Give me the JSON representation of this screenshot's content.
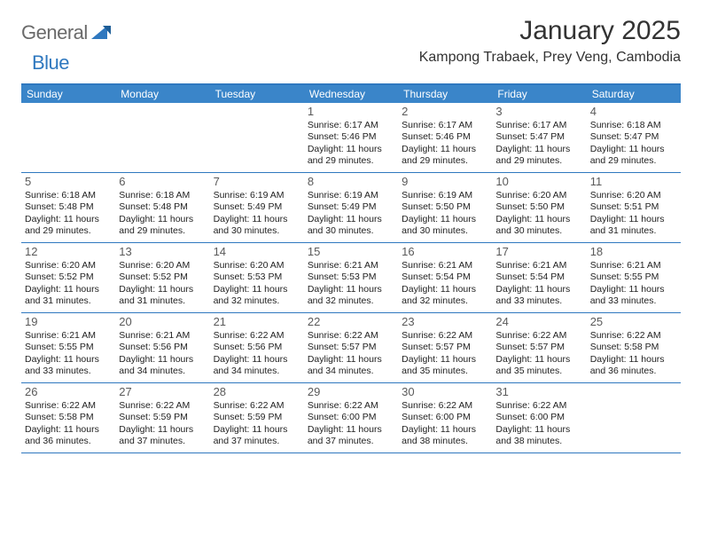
{
  "logo": {
    "general": "General",
    "blue": "Blue"
  },
  "header": {
    "month_title": "January 2025",
    "location": "Kampong Trabaek, Prey Veng, Cambodia"
  },
  "colors": {
    "brand_blue": "#2f78bf",
    "header_bg": "#3a85c9",
    "logo_gray": "#6a6a6a",
    "text": "#222222",
    "daynum": "#5a5a5a"
  },
  "weekdays": [
    "Sunday",
    "Monday",
    "Tuesday",
    "Wednesday",
    "Thursday",
    "Friday",
    "Saturday"
  ],
  "weeks": [
    [
      null,
      null,
      null,
      {
        "n": "1",
        "sr": "6:17 AM",
        "ss": "5:46 PM",
        "dh": "11",
        "dm": "29"
      },
      {
        "n": "2",
        "sr": "6:17 AM",
        "ss": "5:46 PM",
        "dh": "11",
        "dm": "29"
      },
      {
        "n": "3",
        "sr": "6:17 AM",
        "ss": "5:47 PM",
        "dh": "11",
        "dm": "29"
      },
      {
        "n": "4",
        "sr": "6:18 AM",
        "ss": "5:47 PM",
        "dh": "11",
        "dm": "29"
      }
    ],
    [
      {
        "n": "5",
        "sr": "6:18 AM",
        "ss": "5:48 PM",
        "dh": "11",
        "dm": "29"
      },
      {
        "n": "6",
        "sr": "6:18 AM",
        "ss": "5:48 PM",
        "dh": "11",
        "dm": "29"
      },
      {
        "n": "7",
        "sr": "6:19 AM",
        "ss": "5:49 PM",
        "dh": "11",
        "dm": "30"
      },
      {
        "n": "8",
        "sr": "6:19 AM",
        "ss": "5:49 PM",
        "dh": "11",
        "dm": "30"
      },
      {
        "n": "9",
        "sr": "6:19 AM",
        "ss": "5:50 PM",
        "dh": "11",
        "dm": "30"
      },
      {
        "n": "10",
        "sr": "6:20 AM",
        "ss": "5:50 PM",
        "dh": "11",
        "dm": "30"
      },
      {
        "n": "11",
        "sr": "6:20 AM",
        "ss": "5:51 PM",
        "dh": "11",
        "dm": "31"
      }
    ],
    [
      {
        "n": "12",
        "sr": "6:20 AM",
        "ss": "5:52 PM",
        "dh": "11",
        "dm": "31"
      },
      {
        "n": "13",
        "sr": "6:20 AM",
        "ss": "5:52 PM",
        "dh": "11",
        "dm": "31"
      },
      {
        "n": "14",
        "sr": "6:20 AM",
        "ss": "5:53 PM",
        "dh": "11",
        "dm": "32"
      },
      {
        "n": "15",
        "sr": "6:21 AM",
        "ss": "5:53 PM",
        "dh": "11",
        "dm": "32"
      },
      {
        "n": "16",
        "sr": "6:21 AM",
        "ss": "5:54 PM",
        "dh": "11",
        "dm": "32"
      },
      {
        "n": "17",
        "sr": "6:21 AM",
        "ss": "5:54 PM",
        "dh": "11",
        "dm": "33"
      },
      {
        "n": "18",
        "sr": "6:21 AM",
        "ss": "5:55 PM",
        "dh": "11",
        "dm": "33"
      }
    ],
    [
      {
        "n": "19",
        "sr": "6:21 AM",
        "ss": "5:55 PM",
        "dh": "11",
        "dm": "33"
      },
      {
        "n": "20",
        "sr": "6:21 AM",
        "ss": "5:56 PM",
        "dh": "11",
        "dm": "34"
      },
      {
        "n": "21",
        "sr": "6:22 AM",
        "ss": "5:56 PM",
        "dh": "11",
        "dm": "34"
      },
      {
        "n": "22",
        "sr": "6:22 AM",
        "ss": "5:57 PM",
        "dh": "11",
        "dm": "34"
      },
      {
        "n": "23",
        "sr": "6:22 AM",
        "ss": "5:57 PM",
        "dh": "11",
        "dm": "35"
      },
      {
        "n": "24",
        "sr": "6:22 AM",
        "ss": "5:57 PM",
        "dh": "11",
        "dm": "35"
      },
      {
        "n": "25",
        "sr": "6:22 AM",
        "ss": "5:58 PM",
        "dh": "11",
        "dm": "36"
      }
    ],
    [
      {
        "n": "26",
        "sr": "6:22 AM",
        "ss": "5:58 PM",
        "dh": "11",
        "dm": "36"
      },
      {
        "n": "27",
        "sr": "6:22 AM",
        "ss": "5:59 PM",
        "dh": "11",
        "dm": "37"
      },
      {
        "n": "28",
        "sr": "6:22 AM",
        "ss": "5:59 PM",
        "dh": "11",
        "dm": "37"
      },
      {
        "n": "29",
        "sr": "6:22 AM",
        "ss": "6:00 PM",
        "dh": "11",
        "dm": "37"
      },
      {
        "n": "30",
        "sr": "6:22 AM",
        "ss": "6:00 PM",
        "dh": "11",
        "dm": "38"
      },
      {
        "n": "31",
        "sr": "6:22 AM",
        "ss": "6:00 PM",
        "dh": "11",
        "dm": "38"
      },
      null
    ]
  ],
  "labels": {
    "sunrise": "Sunrise:",
    "sunset": "Sunset:",
    "daylight": "Daylight:",
    "hours": "hours",
    "and": "and",
    "minutes": "minutes."
  }
}
